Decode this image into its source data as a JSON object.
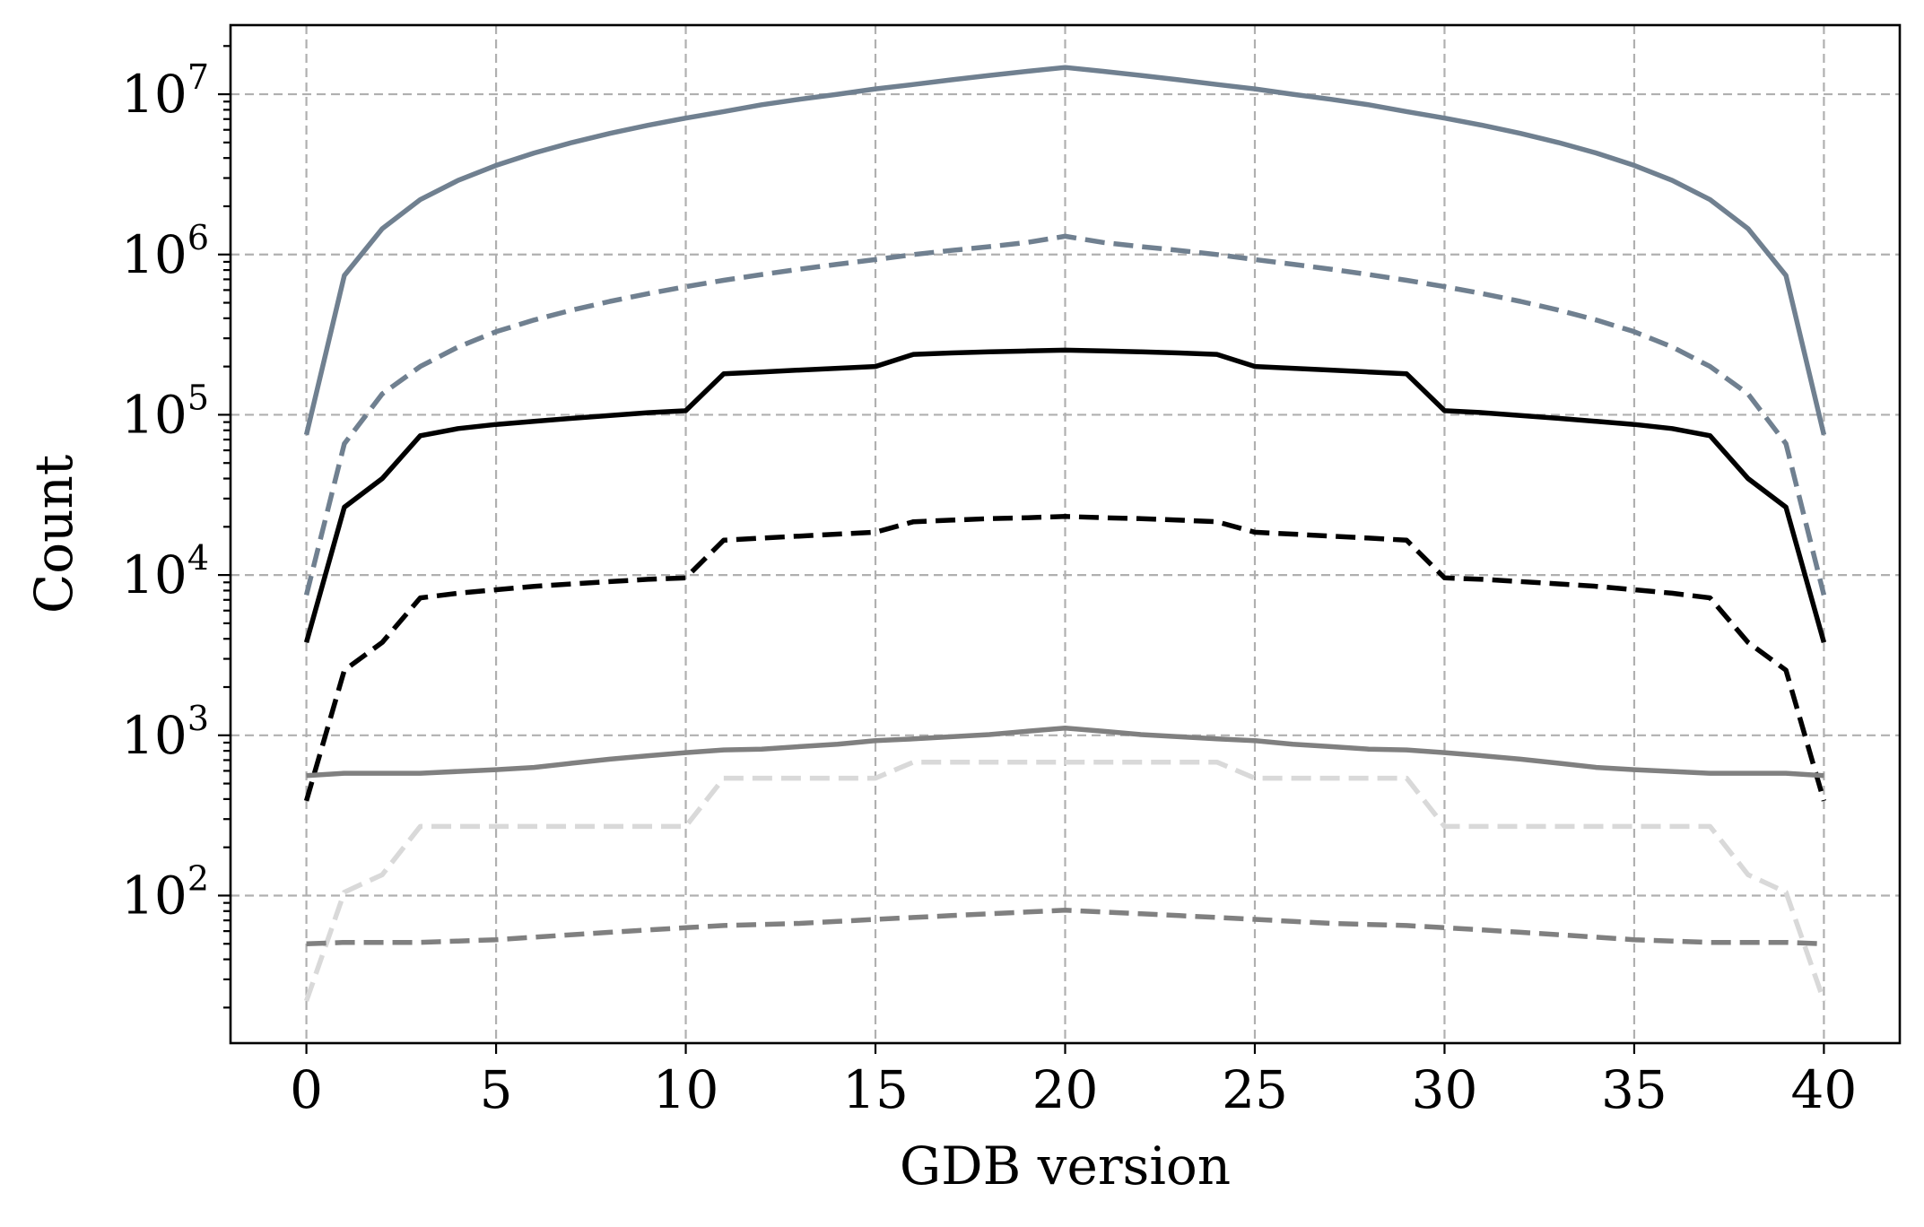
{
  "chart_data": {
    "type": "line",
    "xlabel": "GDB version",
    "ylabel": "Count",
    "yscale": "log",
    "xlim": [
      -2,
      42
    ],
    "ylim": [
      12,
      27000000
    ],
    "xticks": [
      0,
      5,
      10,
      15,
      20,
      25,
      30,
      35,
      40
    ],
    "yticks": [
      {
        "value": 100,
        "base": "10",
        "exp": "2"
      },
      {
        "value": 1000,
        "base": "10",
        "exp": "3"
      },
      {
        "value": 10000,
        "base": "10",
        "exp": "4"
      },
      {
        "value": 100000,
        "base": "10",
        "exp": "5"
      },
      {
        "value": 1000000,
        "base": "10",
        "exp": "6"
      },
      {
        "value": 10000000,
        "base": "10",
        "exp": "7"
      }
    ],
    "grid": true,
    "legend": "none",
    "x": [
      0,
      1,
      2,
      3,
      4,
      5,
      6,
      7,
      8,
      9,
      10,
      11,
      12,
      13,
      14,
      15,
      16,
      17,
      18,
      19,
      20,
      21,
      22,
      23,
      24,
      25,
      26,
      27,
      28,
      29,
      30,
      31,
      32,
      33,
      34,
      35,
      36,
      37,
      38,
      39,
      40
    ],
    "series": [
      {
        "color": "#708090",
        "dash": "solid",
        "values": [
          75000,
          740000,
          1450000,
          2200000,
          2900000,
          3600000,
          4300000,
          5000000,
          5700000,
          6400000,
          7100000,
          7800000,
          8600000,
          9300000,
          10000000,
          10800000,
          11500000,
          12300000,
          13100000,
          13900000,
          14700000,
          13900000,
          13100000,
          12300000,
          11500000,
          10800000,
          10000000,
          9300000,
          8600000,
          7800000,
          7100000,
          6400000,
          5700000,
          5000000,
          4300000,
          3600000,
          2900000,
          2200000,
          1450000,
          740000,
          75000
        ]
      },
      {
        "color": "#708090",
        "dash": "dashed",
        "values": [
          7500,
          66000,
          135000,
          200000,
          265000,
          330000,
          390000,
          450000,
          510000,
          570000,
          630000,
          690000,
          750000,
          810000,
          870000,
          930000,
          1000000,
          1060000,
          1120000,
          1190000,
          1300000,
          1190000,
          1120000,
          1060000,
          1000000,
          930000,
          870000,
          810000,
          750000,
          690000,
          630000,
          570000,
          510000,
          450000,
          390000,
          330000,
          265000,
          200000,
          135000,
          66000,
          7500
        ]
      },
      {
        "color": "#000000",
        "dash": "solid",
        "values": [
          3800,
          26500,
          40000,
          74000,
          82000,
          87000,
          91000,
          95000,
          99000,
          103000,
          106000,
          180000,
          185000,
          190000,
          195000,
          200000,
          238000,
          243000,
          247000,
          250000,
          253000,
          250000,
          247000,
          243000,
          238000,
          200000,
          195000,
          190000,
          185000,
          180000,
          106000,
          103000,
          99000,
          95000,
          91000,
          87000,
          82000,
          74000,
          40000,
          26500,
          3800
        ]
      },
      {
        "color": "#000000",
        "dash": "dashed",
        "values": [
          390,
          2550,
          3800,
          7200,
          7700,
          8100,
          8500,
          8800,
          9100,
          9400,
          9600,
          16500,
          17000,
          17500,
          18000,
          18500,
          21500,
          22000,
          22500,
          22800,
          23200,
          22800,
          22500,
          22000,
          21500,
          18500,
          18000,
          17500,
          17000,
          16500,
          9600,
          9400,
          9100,
          8800,
          8500,
          8100,
          7700,
          7200,
          3800,
          2550,
          390
        ]
      },
      {
        "color": "#808080",
        "dash": "solid",
        "values": [
          560,
          580,
          580,
          580,
          595,
          610,
          630,
          670,
          710,
          745,
          780,
          810,
          820,
          850,
          880,
          925,
          950,
          980,
          1010,
          1060,
          1110,
          1060,
          1010,
          980,
          950,
          925,
          880,
          850,
          820,
          810,
          780,
          745,
          710,
          670,
          630,
          610,
          595,
          580,
          580,
          580,
          560
        ]
      },
      {
        "color": "#d9d9d9",
        "dash": "dashed",
        "values": [
          22,
          105,
          135,
          270,
          270,
          270,
          270,
          270,
          270,
          270,
          270,
          540,
          540,
          540,
          540,
          540,
          680,
          680,
          680,
          680,
          680,
          680,
          680,
          680,
          680,
          540,
          540,
          540,
          540,
          540,
          270,
          270,
          270,
          270,
          270,
          270,
          270,
          270,
          135,
          105,
          22
        ]
      },
      {
        "color": "#808080",
        "dash": "dashed",
        "values": [
          50,
          51,
          51,
          51,
          52,
          53,
          55,
          57,
          59,
          61,
          63,
          65,
          66,
          67,
          69,
          71,
          73,
          75,
          77,
          79,
          81,
          79,
          77,
          75,
          73,
          71,
          69,
          67,
          66,
          65,
          63,
          61,
          59,
          57,
          55,
          53,
          52,
          51,
          51,
          51,
          50
        ]
      }
    ]
  }
}
